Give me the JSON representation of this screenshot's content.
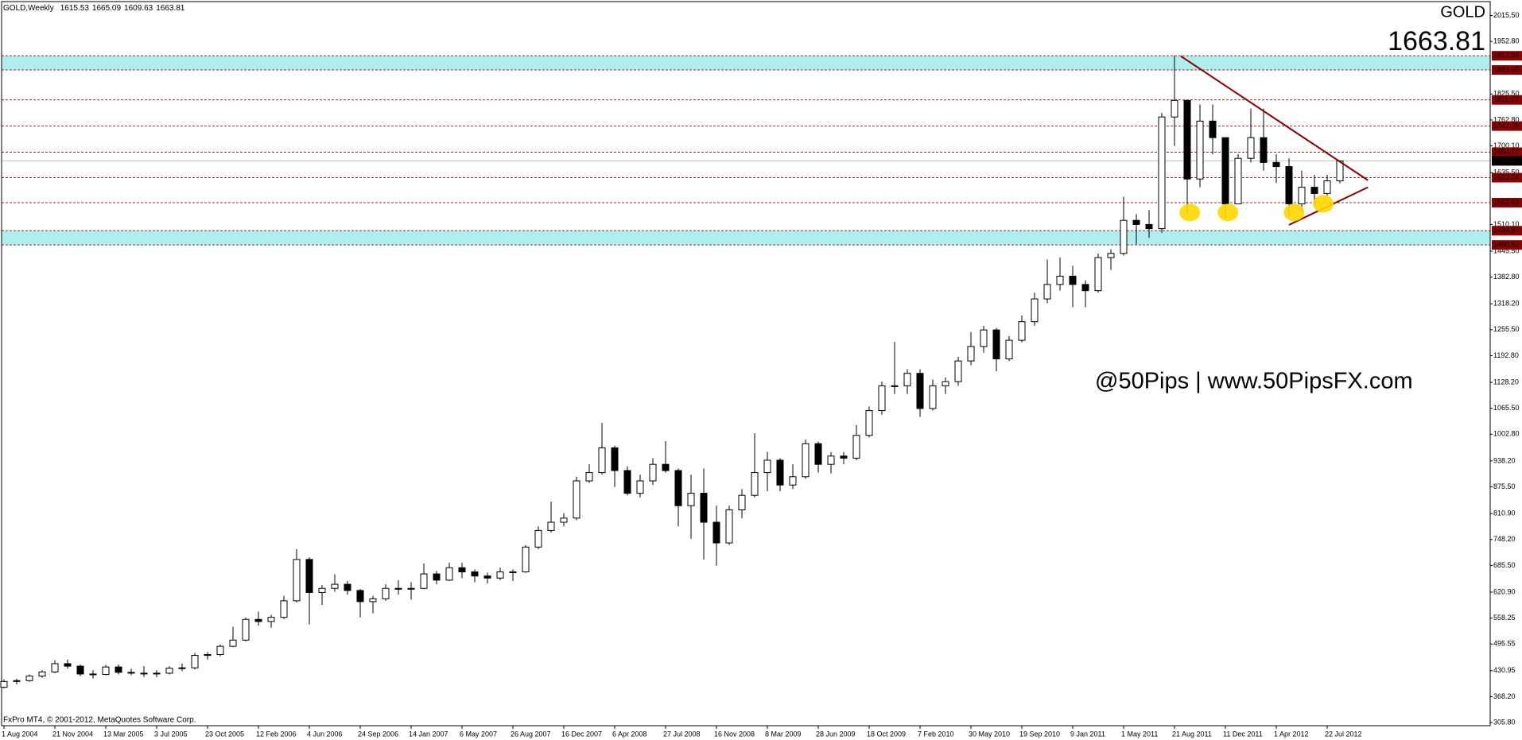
{
  "chart_data": {
    "type": "candlestick",
    "title": "GOLD,Weekly",
    "symbol": "GOLD",
    "watermark": "@50Pips | www.50PipsFX.com",
    "footer": "FxPro MT4, © 2001-2012, MetaQuotes Software Corp.",
    "categories": [
      "1 Aug 2004",
      null,
      null,
      null,
      "21 Nov 2004",
      null,
      null,
      null,
      "13 Mar 2005",
      null,
      null,
      null,
      "3 Jul 2005",
      null,
      null,
      null,
      "23 Oct 2005",
      null,
      null,
      null,
      "12 Feb 2006",
      null,
      null,
      null,
      "4 Jun 2006",
      null,
      null,
      null,
      "24 Sep 2006",
      null,
      null,
      null,
      "14 Jan 2007",
      null,
      null,
      null,
      "6 May 2007",
      null,
      null,
      null,
      "26 Aug 2007",
      null,
      null,
      null,
      "16 Dec 2007",
      null,
      null,
      null,
      "6 Apr 2008",
      null,
      null,
      null,
      "27 Jul 2008",
      null,
      null,
      null,
      "16 Nov 2008",
      null,
      null,
      null,
      "8 Mar 2009",
      null,
      null,
      null,
      "28 Jun 2009",
      null,
      null,
      null,
      "18 Oct 2009",
      null,
      null,
      null,
      "7 Feb 2010",
      null,
      null,
      null,
      "30 May 2010",
      null,
      null,
      null,
      "19 Sep 2010",
      null,
      null,
      null,
      "9 Jan 2011",
      null,
      null,
      null,
      "1 May 2011",
      null,
      null,
      null,
      "21 Aug 2011",
      null,
      null,
      null,
      "11 Dec 2011",
      null,
      null,
      null,
      "1 Apr 2012",
      null,
      null,
      null,
      "22 Jul 2012",
      null
    ],
    "open": [
      391,
      405,
      407,
      418,
      428,
      448,
      442,
      423,
      422,
      440,
      427,
      425,
      425,
      425,
      437,
      438,
      468,
      470,
      490,
      505,
      555,
      550,
      560,
      600,
      700,
      620,
      630,
      640,
      625,
      598,
      605,
      630,
      628,
      630,
      665,
      650,
      680,
      670,
      660,
      655,
      670,
      670,
      730,
      770,
      790,
      800,
      890,
      910,
      970,
      915,
      860,
      890,
      930,
      915,
      830,
      860,
      790,
      740,
      820,
      855,
      910,
      940,
      880,
      900,
      980,
      930,
      950,
      945,
      1000,
      1060,
      1120,
      1120,
      1150,
      1065,
      1120,
      1130,
      1180,
      1215,
      1255,
      1185,
      1230,
      1275,
      1330,
      1365,
      1385,
      1365,
      1350,
      1430,
      1440,
      1520,
      1510,
      1500,
      1770,
      1810,
      1620,
      1760,
      1720,
      1560,
      1670,
      1720,
      1660,
      1650,
      1560,
      1600,
      1585,
      1615.53
    ],
    "high": [
      410,
      412,
      422,
      432,
      456,
      458,
      446,
      432,
      445,
      446,
      436,
      442,
      432,
      442,
      448,
      474,
      476,
      494,
      537,
      560,
      574,
      566,
      612,
      725,
      705,
      638,
      664,
      648,
      628,
      612,
      640,
      650,
      645,
      690,
      672,
      692,
      692,
      676,
      668,
      680,
      676,
      735,
      780,
      840,
      812,
      900,
      930,
      1030,
      975,
      925,
      905,
      945,
      986,
      920,
      905,
      920,
      830,
      830,
      870,
      1005,
      960,
      945,
      930,
      990,
      985,
      960,
      960,
      1025,
      1070,
      1130,
      1226,
      1160,
      1160,
      1135,
      1140,
      1190,
      1250,
      1265,
      1260,
      1240,
      1290,
      1345,
      1425,
      1430,
      1410,
      1375,
      1440,
      1450,
      1577,
      1535,
      1545,
      1780,
      1917.95,
      1810,
      1800,
      1800,
      1720,
      1680,
      1790,
      1790,
      1680,
      1670,
      1640,
      1630,
      1630,
      1665.09
    ],
    "low": [
      388,
      398,
      404,
      414,
      425,
      436,
      418,
      412,
      420,
      422,
      420,
      416,
      415,
      422,
      430,
      434,
      458,
      466,
      488,
      502,
      540,
      535,
      556,
      596,
      543,
      590,
      622,
      615,
      560,
      570,
      600,
      615,
      603,
      628,
      640,
      648,
      655,
      645,
      642,
      650,
      648,
      668,
      725,
      765,
      780,
      795,
      885,
      905,
      875,
      855,
      850,
      880,
      910,
      780,
      750,
      700,
      685,
      735,
      800,
      850,
      865,
      865,
      870,
      895,
      910,
      908,
      930,
      940,
      995,
      1050,
      1100,
      1100,
      1045,
      1060,
      1100,
      1120,
      1170,
      1200,
      1155,
      1180,
      1225,
      1265,
      1320,
      1350,
      1310,
      1310,
      1345,
      1400,
      1435,
      1462,
      1478,
      1490,
      1700,
      1535,
      1600,
      1680,
      1523,
      1560,
      1660,
      1640,
      1610,
      1530,
      1540,
      1555,
      1580,
      1609.63
    ],
    "close": [
      405,
      407,
      418,
      428,
      448,
      442,
      423,
      422,
      440,
      427,
      425,
      425,
      425,
      437,
      438,
      468,
      470,
      490,
      505,
      555,
      550,
      560,
      600,
      700,
      620,
      630,
      640,
      625,
      598,
      605,
      630,
      628,
      630,
      665,
      650,
      680,
      670,
      660,
      655,
      670,
      670,
      730,
      770,
      790,
      800,
      890,
      910,
      970,
      915,
      860,
      890,
      930,
      915,
      830,
      860,
      790,
      740,
      820,
      855,
      910,
      940,
      880,
      900,
      980,
      930,
      950,
      945,
      1000,
      1060,
      1120,
      1120,
      1150,
      1065,
      1120,
      1130,
      1180,
      1215,
      1255,
      1185,
      1230,
      1275,
      1330,
      1365,
      1385,
      1365,
      1350,
      1430,
      1440,
      1520,
      1510,
      1500,
      1770,
      1810,
      1620,
      1760,
      1720,
      1560,
      1670,
      1720,
      1660,
      1650,
      1560,
      1600,
      1585,
      1615.53,
      1663.81
    ],
    "ylim": [
      298,
      2049
    ],
    "yticks": [
      {
        "value": 305.8,
        "label": "305.80"
      },
      {
        "value": 368.2,
        "label": "368.20"
      },
      430.95,
      495.55,
      558.25,
      {
        "value": 620.9,
        "label": "620.90"
      },
      {
        "value": 685.5,
        "label": "685.50"
      },
      {
        "value": 748.2,
        "label": "748.20"
      },
      {
        "value": 810.9,
        "label": "810.90"
      },
      {
        "value": 875.5,
        "label": "875.50"
      },
      {
        "value": 938.2,
        "label": "938.20"
      },
      {
        "value": 1002.8,
        "label": "1002.80"
      },
      {
        "value": 1065.5,
        "label": "1065.50"
      },
      {
        "value": 1128.2,
        "label": "1128.20"
      },
      {
        "value": 1192.8,
        "label": "1192.80"
      },
      {
        "value": 1255.5,
        "label": "1255.50"
      },
      {
        "value": 1318.2,
        "label": "1318.20"
      },
      {
        "value": 1382.8,
        "label": "1382.80"
      },
      {
        "value": 1445.5,
        "label": "1445.50"
      },
      {
        "value": 1510.1,
        "label": "1510.10"
      },
      {
        "value": 1635.5,
        "label": "1635.50"
      },
      {
        "value": 1700.1,
        "label": "1700.10"
      },
      {
        "value": 1762.8,
        "label": "1762.80"
      },
      {
        "value": 1825.5,
        "label": "1825.50"
      },
      {
        "value": 1952.8,
        "label": "1952.80"
      },
      {
        "value": 2015.5,
        "label": "2015.50"
      }
    ],
    "levels": [
      1917.95,
      {
        "value": 1883.6,
        "label": "1883.60"
      },
      1811.27,
      1747.99,
      1684.71,
      1623.24,
      1562.69,
      1494.87,
      1460.52
    ],
    "zones": [
      [
        1883.6,
        1917.95
      ],
      [
        1460.52,
        1494.87
      ]
    ],
    "trendlines": [
      {
        "x": [
          92.5,
          107.2
        ],
        "y": [
          1917,
          1617
        ]
      },
      {
        "x": [
          101,
          107.2
        ],
        "y": [
          1509,
          1600
        ]
      }
    ],
    "highlights": {
      "x": [
        93.2,
        96.2,
        101.4,
        103.7
      ],
      "y": [
        1539,
        1539,
        1539,
        1560
      ]
    },
    "colors": {
      "bull": "#ffffff",
      "bear": "#000000",
      "level": "#a52a2a",
      "zone": "#afeeee",
      "trend": "#8b0000",
      "highlight": "#ffd700",
      "tag": "#8b0000",
      "accent": "#006400",
      "watermark": "#8b1a1a"
    }
  }
}
